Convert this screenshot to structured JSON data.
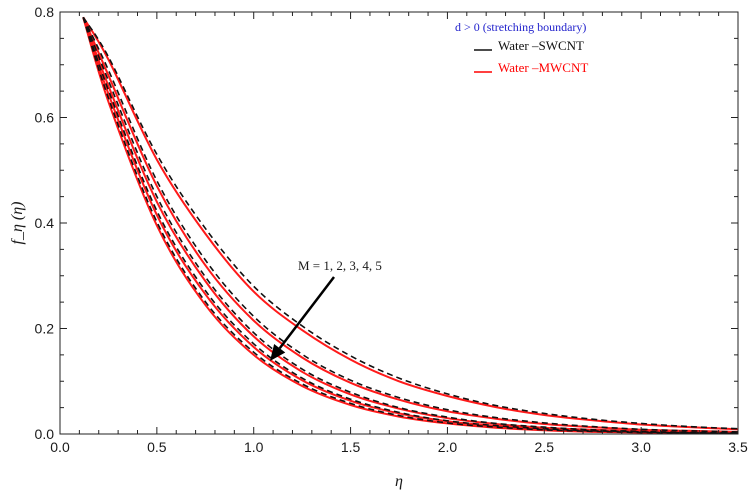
{
  "chart_data": {
    "type": "line",
    "xlabel": "η",
    "ylabel": "f_η (η)",
    "xlim": [
      0,
      3.5
    ],
    "ylim": [
      0,
      0.8
    ],
    "xticks": [
      "0.0",
      "0.5",
      "1.0",
      "1.5",
      "2.0",
      "2.5",
      "3.0",
      "3.5"
    ],
    "yticks": [
      "0.0",
      "0.2",
      "0.4",
      "0.6",
      "0.8"
    ],
    "legend": {
      "title": "d > 0 (stretching boundary)",
      "position": "top-right",
      "entries": [
        {
          "label": "Water –SWCNT",
          "color": "#111111",
          "style": "dashed"
        },
        {
          "label": "Water –MWCNT",
          "color": "#ff0000",
          "style": "solid"
        }
      ]
    },
    "annotation": "M = 1, 2, 3, 4, 5",
    "x": [
      0.12,
      0.25,
      0.5,
      0.75,
      1.0,
      1.25,
      1.5,
      1.75,
      2.0,
      2.25,
      2.5,
      2.75,
      3.0,
      3.25,
      3.5
    ],
    "series": [
      {
        "name": "Water –MWCNT, M=1",
        "style": "solid",
        "values": [
          0.79,
          0.71,
          0.52,
          0.38,
          0.27,
          0.197,
          0.141,
          0.1,
          0.072,
          0.051,
          0.036,
          0.026,
          0.018,
          0.013,
          0.009
        ]
      },
      {
        "name": "Water –MWCNT, M=2",
        "style": "solid",
        "values": [
          0.79,
          0.68,
          0.47,
          0.32,
          0.215,
          0.145,
          0.097,
          0.065,
          0.043,
          0.029,
          0.019,
          0.013,
          0.008,
          0.006,
          0.004
        ]
      },
      {
        "name": "Water –MWCNT, M=3",
        "style": "solid",
        "values": [
          0.79,
          0.66,
          0.44,
          0.29,
          0.185,
          0.118,
          0.075,
          0.048,
          0.03,
          0.019,
          0.012,
          0.008,
          0.005,
          0.003,
          0.002
        ]
      },
      {
        "name": "Water –MWCNT, M=4",
        "style": "solid",
        "values": [
          0.79,
          0.645,
          0.415,
          0.265,
          0.165,
          0.102,
          0.063,
          0.039,
          0.024,
          0.015,
          0.009,
          0.006,
          0.003,
          0.002,
          0.001
        ]
      },
      {
        "name": "Water –MWCNT, M=5",
        "style": "solid",
        "values": [
          0.79,
          0.63,
          0.395,
          0.245,
          0.15,
          0.091,
          0.055,
          0.033,
          0.02,
          0.012,
          0.007,
          0.004,
          0.003,
          0.002,
          0.001
        ]
      },
      {
        "name": "Water –SWCNT, M=1",
        "style": "dashed",
        "values": [
          0.79,
          0.715,
          0.53,
          0.39,
          0.28,
          0.205,
          0.148,
          0.106,
          0.076,
          0.054,
          0.039,
          0.028,
          0.02,
          0.014,
          0.01
        ]
      },
      {
        "name": "Water –SWCNT, M=2",
        "style": "dashed",
        "values": [
          0.79,
          0.69,
          0.48,
          0.33,
          0.223,
          0.151,
          0.102,
          0.069,
          0.046,
          0.031,
          0.021,
          0.014,
          0.009,
          0.006,
          0.004
        ]
      },
      {
        "name": "Water –SWCNT, M=3",
        "style": "dashed",
        "values": [
          0.79,
          0.67,
          0.45,
          0.298,
          0.192,
          0.123,
          0.079,
          0.05,
          0.032,
          0.02,
          0.013,
          0.008,
          0.005,
          0.003,
          0.002
        ]
      },
      {
        "name": "Water –SWCNT, M=4",
        "style": "dashed",
        "values": [
          0.79,
          0.652,
          0.423,
          0.272,
          0.171,
          0.106,
          0.066,
          0.041,
          0.025,
          0.016,
          0.01,
          0.006,
          0.004,
          0.002,
          0.001
        ]
      },
      {
        "name": "Water –SWCNT, M=5",
        "style": "dashed",
        "values": [
          0.79,
          0.637,
          0.402,
          0.251,
          0.155,
          0.095,
          0.058,
          0.035,
          0.021,
          0.013,
          0.008,
          0.005,
          0.003,
          0.002,
          0.001
        ]
      }
    ],
    "grid": false
  }
}
